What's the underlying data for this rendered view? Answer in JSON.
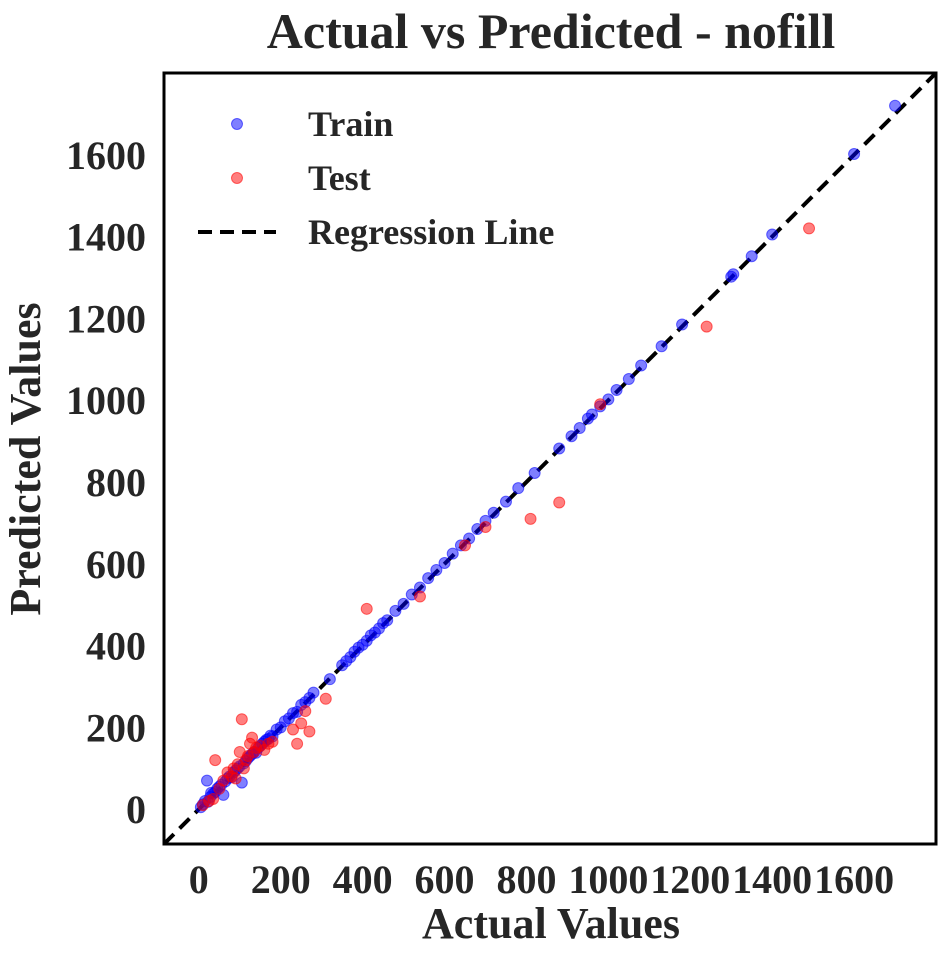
{
  "chart_data": {
    "type": "scatter",
    "title": "Actual vs Predicted - nofill",
    "xlabel": "Actual Values",
    "ylabel": "Predicted Values",
    "xlim": [
      -85,
      1800
    ],
    "ylim": [
      -85,
      1800
    ],
    "x_ticks": [
      0,
      200,
      400,
      600,
      800,
      1000,
      1200,
      1400,
      1600
    ],
    "y_ticks": [
      0,
      200,
      400,
      600,
      800,
      1000,
      1200,
      1400,
      1600
    ],
    "grid": false,
    "legend_position": "top-left",
    "legend": [
      {
        "label": "Train",
        "kind": "marker",
        "color": "#0000ff"
      },
      {
        "label": "Test",
        "kind": "marker",
        "color": "#ff0000"
      },
      {
        "label": "Regression Line",
        "kind": "dashed-line",
        "color": "#000000"
      }
    ],
    "regression_line": {
      "from": [
        -85,
        -85
      ],
      "to": [
        1800,
        1800
      ],
      "style": "dashed",
      "color": "#000000"
    },
    "series": [
      {
        "name": "Train",
        "color": "#0000ff",
        "points": [
          [
            5,
            5
          ],
          [
            10,
            12
          ],
          [
            15,
            20
          ],
          [
            20,
            70
          ],
          [
            22,
            18
          ],
          [
            28,
            30
          ],
          [
            30,
            40
          ],
          [
            35,
            38
          ],
          [
            40,
            42
          ],
          [
            45,
            50
          ],
          [
            50,
            55
          ],
          [
            55,
            60
          ],
          [
            60,
            35
          ],
          [
            65,
            68
          ],
          [
            70,
            75
          ],
          [
            75,
            80
          ],
          [
            80,
            78
          ],
          [
            85,
            90
          ],
          [
            90,
            95
          ],
          [
            95,
            100
          ],
          [
            100,
            105
          ],
          [
            105,
            65
          ],
          [
            110,
            112
          ],
          [
            115,
            118
          ],
          [
            120,
            125
          ],
          [
            125,
            130
          ],
          [
            130,
            135
          ],
          [
            135,
            140
          ],
          [
            140,
            138
          ],
          [
            145,
            150
          ],
          [
            150,
            155
          ],
          [
            155,
            160
          ],
          [
            160,
            165
          ],
          [
            165,
            170
          ],
          [
            170,
            172
          ],
          [
            175,
            180
          ],
          [
            180,
            178
          ],
          [
            190,
            195
          ],
          [
            200,
            200
          ],
          [
            210,
            215
          ],
          [
            220,
            222
          ],
          [
            230,
            235
          ],
          [
            240,
            238
          ],
          [
            250,
            255
          ],
          [
            260,
            262
          ],
          [
            270,
            272
          ],
          [
            280,
            285
          ],
          [
            320,
            318
          ],
          [
            350,
            352
          ],
          [
            360,
            362
          ],
          [
            370,
            372
          ],
          [
            380,
            385
          ],
          [
            390,
            395
          ],
          [
            400,
            402
          ],
          [
            410,
            412
          ],
          [
            420,
            425
          ],
          [
            430,
            432
          ],
          [
            440,
            442
          ],
          [
            450,
            455
          ],
          [
            460,
            462
          ],
          [
            480,
            485
          ],
          [
            500,
            502
          ],
          [
            520,
            525
          ],
          [
            540,
            542
          ],
          [
            560,
            565
          ],
          [
            580,
            585
          ],
          [
            600,
            602
          ],
          [
            620,
            625
          ],
          [
            640,
            645
          ],
          [
            660,
            662
          ],
          [
            680,
            685
          ],
          [
            700,
            705
          ],
          [
            720,
            725
          ],
          [
            750,
            752
          ],
          [
            780,
            785
          ],
          [
            820,
            822
          ],
          [
            880,
            882
          ],
          [
            910,
            912
          ],
          [
            930,
            932
          ],
          [
            950,
            955
          ],
          [
            960,
            965
          ],
          [
            980,
            985
          ],
          [
            1000,
            1002
          ],
          [
            1020,
            1025
          ],
          [
            1050,
            1052
          ],
          [
            1080,
            1085
          ],
          [
            1130,
            1132
          ],
          [
            1180,
            1185
          ],
          [
            1300,
            1302
          ],
          [
            1305,
            1308
          ],
          [
            1350,
            1352
          ],
          [
            1400,
            1405
          ],
          [
            1600,
            1602
          ],
          [
            1700,
            1720
          ]
        ]
      },
      {
        "name": "Test",
        "color": "#ff0000",
        "points": [
          [
            10,
            10
          ],
          [
            25,
            20
          ],
          [
            35,
            25
          ],
          [
            40,
            120
          ],
          [
            50,
            50
          ],
          [
            60,
            70
          ],
          [
            70,
            90
          ],
          [
            80,
            80
          ],
          [
            85,
            100
          ],
          [
            90,
            75
          ],
          [
            95,
            110
          ],
          [
            100,
            140
          ],
          [
            105,
            220
          ],
          [
            110,
            100
          ],
          [
            115,
            120
          ],
          [
            120,
            130
          ],
          [
            125,
            160
          ],
          [
            130,
            175
          ],
          [
            135,
            140
          ],
          [
            140,
            150
          ],
          [
            150,
            155
          ],
          [
            160,
            145
          ],
          [
            170,
            160
          ],
          [
            180,
            165
          ],
          [
            230,
            195
          ],
          [
            240,
            160
          ],
          [
            250,
            210
          ],
          [
            260,
            240
          ],
          [
            270,
            190
          ],
          [
            310,
            270
          ],
          [
            410,
            490
          ],
          [
            540,
            520
          ],
          [
            650,
            645
          ],
          [
            700,
            690
          ],
          [
            810,
            710
          ],
          [
            880,
            750
          ],
          [
            980,
            990
          ],
          [
            1240,
            1180
          ],
          [
            1490,
            1420
          ]
        ]
      }
    ]
  }
}
